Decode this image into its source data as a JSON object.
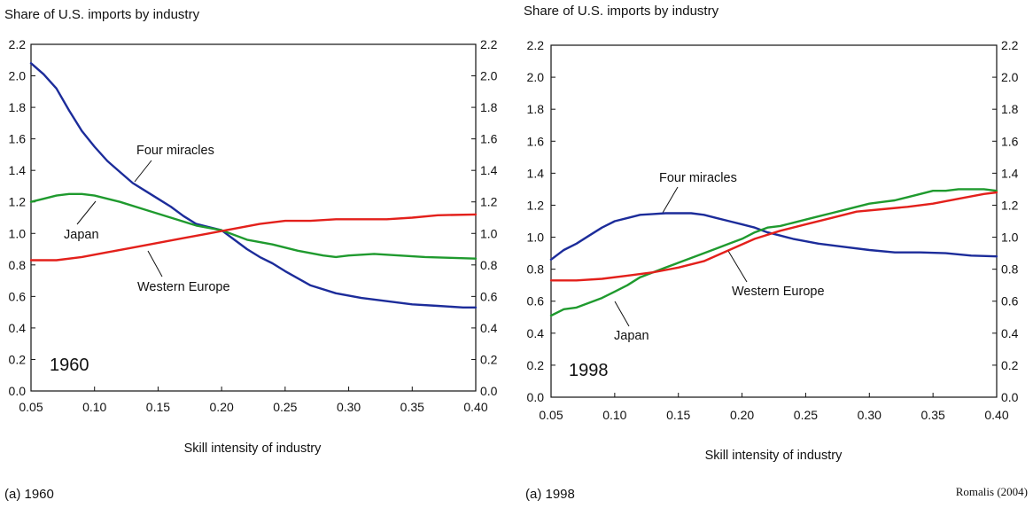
{
  "colors": {
    "four_miracles": "#1c2c9a",
    "japan": "#1f9a2e",
    "western_europe": "#e3201b",
    "frame": "#111111"
  },
  "source": "Romalis (2004)",
  "chart_data": [
    {
      "type": "line",
      "title": "Share of U.S. imports by industry",
      "year_label": "1960",
      "caption": "(a) 1960",
      "xlabel": "Skill intensity of industry",
      "xlim": [
        0.05,
        0.4
      ],
      "ylim": [
        0.0,
        2.2
      ],
      "x_ticks": [
        "0.05",
        "0.10",
        "0.15",
        "0.20",
        "0.25",
        "0.30",
        "0.35",
        "0.40"
      ],
      "y_ticks": [
        "0.0",
        "0.2",
        "0.4",
        "0.6",
        "0.8",
        "1.0",
        "1.2",
        "1.4",
        "1.6",
        "1.8",
        "2.0",
        "2.2"
      ],
      "grid": false,
      "series": [
        {
          "name": "Four miracles",
          "color_key": "four_miracles",
          "points": [
            [
              0.05,
              2.08
            ],
            [
              0.06,
              2.01
            ],
            [
              0.07,
              1.92
            ],
            [
              0.08,
              1.78
            ],
            [
              0.09,
              1.65
            ],
            [
              0.1,
              1.55
            ],
            [
              0.11,
              1.46
            ],
            [
              0.12,
              1.39
            ],
            [
              0.13,
              1.32
            ],
            [
              0.14,
              1.27
            ],
            [
              0.15,
              1.22
            ],
            [
              0.16,
              1.17
            ],
            [
              0.17,
              1.11
            ],
            [
              0.18,
              1.06
            ],
            [
              0.19,
              1.04
            ],
            [
              0.2,
              1.02
            ],
            [
              0.21,
              0.96
            ],
            [
              0.22,
              0.9
            ],
            [
              0.23,
              0.85
            ],
            [
              0.24,
              0.81
            ],
            [
              0.25,
              0.76
            ],
            [
              0.27,
              0.67
            ],
            [
              0.29,
              0.62
            ],
            [
              0.31,
              0.59
            ],
            [
              0.33,
              0.57
            ],
            [
              0.35,
              0.55
            ],
            [
              0.37,
              0.54
            ],
            [
              0.39,
              0.53
            ],
            [
              0.4,
              0.53
            ]
          ]
        },
        {
          "name": "Japan",
          "color_key": "japan",
          "points": [
            [
              0.05,
              1.2
            ],
            [
              0.06,
              1.22
            ],
            [
              0.07,
              1.24
            ],
            [
              0.08,
              1.25
            ],
            [
              0.09,
              1.25
            ],
            [
              0.1,
              1.24
            ],
            [
              0.12,
              1.2
            ],
            [
              0.14,
              1.15
            ],
            [
              0.16,
              1.1
            ],
            [
              0.18,
              1.05
            ],
            [
              0.2,
              1.02
            ],
            [
              0.22,
              0.96
            ],
            [
              0.24,
              0.93
            ],
            [
              0.26,
              0.89
            ],
            [
              0.28,
              0.86
            ],
            [
              0.29,
              0.85
            ],
            [
              0.3,
              0.86
            ],
            [
              0.32,
              0.87
            ],
            [
              0.34,
              0.86
            ],
            [
              0.36,
              0.85
            ],
            [
              0.38,
              0.845
            ],
            [
              0.4,
              0.84
            ]
          ]
        },
        {
          "name": "Western Europe",
          "color_key": "western_europe",
          "points": [
            [
              0.05,
              0.83
            ],
            [
              0.07,
              0.83
            ],
            [
              0.09,
              0.85
            ],
            [
              0.11,
              0.88
            ],
            [
              0.13,
              0.91
            ],
            [
              0.15,
              0.94
            ],
            [
              0.17,
              0.97
            ],
            [
              0.19,
              1.0
            ],
            [
              0.21,
              1.03
            ],
            [
              0.23,
              1.06
            ],
            [
              0.25,
              1.08
            ],
            [
              0.27,
              1.08
            ],
            [
              0.29,
              1.09
            ],
            [
              0.31,
              1.09
            ],
            [
              0.33,
              1.09
            ],
            [
              0.35,
              1.1
            ],
            [
              0.37,
              1.115
            ],
            [
              0.4,
              1.12
            ]
          ]
        }
      ],
      "annotations": [
        {
          "text": "Four miracles",
          "series": "Four miracles"
        },
        {
          "text": "Japan",
          "series": "Japan"
        },
        {
          "text": "Western Europe",
          "series": "Western Europe"
        }
      ]
    },
    {
      "type": "line",
      "title": "Share of U.S. imports by industry",
      "year_label": "1998",
      "caption": "(a) 1998",
      "xlabel": "Skill intensity of industry",
      "xlim": [
        0.05,
        0.4
      ],
      "ylim": [
        0.0,
        2.2
      ],
      "x_ticks": [
        "0.05",
        "0.10",
        "0.15",
        "0.20",
        "0.25",
        "0.30",
        "0.35",
        "0.40"
      ],
      "y_ticks": [
        "0.0",
        "0.2",
        "0.4",
        "0.6",
        "0.8",
        "1.0",
        "1.2",
        "1.4",
        "1.6",
        "1.8",
        "2.0",
        "2.2"
      ],
      "grid": false,
      "series": [
        {
          "name": "Four miracles",
          "color_key": "four_miracles",
          "points": [
            [
              0.05,
              0.86
            ],
            [
              0.06,
              0.92
            ],
            [
              0.07,
              0.96
            ],
            [
              0.08,
              1.01
            ],
            [
              0.09,
              1.06
            ],
            [
              0.1,
              1.1
            ],
            [
              0.11,
              1.12
            ],
            [
              0.12,
              1.14
            ],
            [
              0.13,
              1.145
            ],
            [
              0.14,
              1.15
            ],
            [
              0.15,
              1.15
            ],
            [
              0.16,
              1.15
            ],
            [
              0.17,
              1.14
            ],
            [
              0.18,
              1.12
            ],
            [
              0.19,
              1.1
            ],
            [
              0.2,
              1.08
            ],
            [
              0.21,
              1.06
            ],
            [
              0.22,
              1.03
            ],
            [
              0.23,
              1.01
            ],
            [
              0.24,
              0.99
            ],
            [
              0.26,
              0.96
            ],
            [
              0.28,
              0.94
            ],
            [
              0.3,
              0.92
            ],
            [
              0.32,
              0.905
            ],
            [
              0.34,
              0.905
            ],
            [
              0.36,
              0.9
            ],
            [
              0.38,
              0.885
            ],
            [
              0.4,
              0.88
            ]
          ]
        },
        {
          "name": "Japan",
          "color_key": "japan",
          "points": [
            [
              0.05,
              0.51
            ],
            [
              0.06,
              0.55
            ],
            [
              0.07,
              0.56
            ],
            [
              0.08,
              0.59
            ],
            [
              0.09,
              0.62
            ],
            [
              0.1,
              0.66
            ],
            [
              0.11,
              0.7
            ],
            [
              0.12,
              0.75
            ],
            [
              0.13,
              0.78
            ],
            [
              0.14,
              0.81
            ],
            [
              0.15,
              0.84
            ],
            [
              0.16,
              0.87
            ],
            [
              0.17,
              0.9
            ],
            [
              0.18,
              0.93
            ],
            [
              0.19,
              0.96
            ],
            [
              0.2,
              0.99
            ],
            [
              0.21,
              1.03
            ],
            [
              0.22,
              1.06
            ],
            [
              0.23,
              1.07
            ],
            [
              0.24,
              1.09
            ],
            [
              0.25,
              1.11
            ],
            [
              0.26,
              1.13
            ],
            [
              0.27,
              1.15
            ],
            [
              0.28,
              1.17
            ],
            [
              0.29,
              1.19
            ],
            [
              0.3,
              1.21
            ],
            [
              0.31,
              1.22
            ],
            [
              0.32,
              1.23
            ],
            [
              0.33,
              1.25
            ],
            [
              0.34,
              1.27
            ],
            [
              0.35,
              1.29
            ],
            [
              0.36,
              1.29
            ],
            [
              0.37,
              1.3
            ],
            [
              0.38,
              1.3
            ],
            [
              0.39,
              1.3
            ],
            [
              0.4,
              1.29
            ]
          ]
        },
        {
          "name": "Western Europe",
          "color_key": "western_europe",
          "points": [
            [
              0.05,
              0.73
            ],
            [
              0.07,
              0.73
            ],
            [
              0.09,
              0.74
            ],
            [
              0.11,
              0.76
            ],
            [
              0.13,
              0.78
            ],
            [
              0.15,
              0.81
            ],
            [
              0.17,
              0.85
            ],
            [
              0.19,
              0.92
            ],
            [
              0.21,
              0.99
            ],
            [
              0.23,
              1.04
            ],
            [
              0.25,
              1.08
            ],
            [
              0.27,
              1.12
            ],
            [
              0.29,
              1.16
            ],
            [
              0.31,
              1.175
            ],
            [
              0.33,
              1.19
            ],
            [
              0.35,
              1.21
            ],
            [
              0.37,
              1.24
            ],
            [
              0.39,
              1.27
            ],
            [
              0.4,
              1.28
            ]
          ]
        }
      ],
      "annotations": [
        {
          "text": "Four miracles",
          "series": "Four miracles"
        },
        {
          "text": "Japan",
          "series": "Japan"
        },
        {
          "text": "Western Europe",
          "series": "Western Europe"
        }
      ]
    }
  ]
}
